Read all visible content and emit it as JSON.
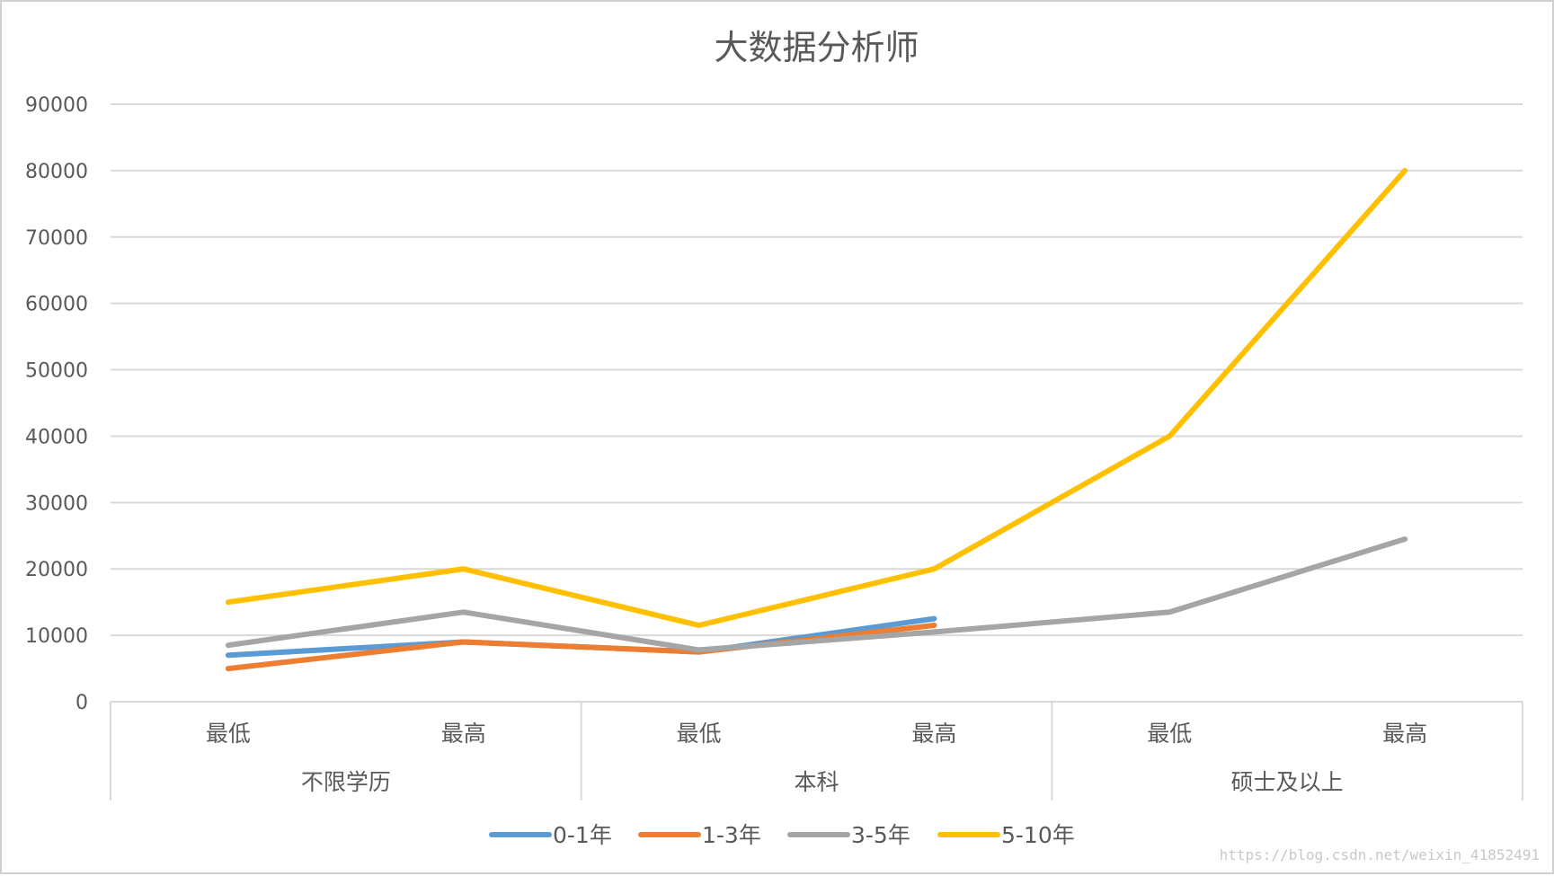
{
  "chart_data": {
    "type": "line",
    "title": "大数据分析师",
    "ylim": [
      0,
      90000
    ],
    "yticks": [
      0,
      10000,
      20000,
      30000,
      40000,
      50000,
      60000,
      70000,
      80000,
      90000
    ],
    "grid": true,
    "legend_position": "bottom",
    "categories": [
      "最低",
      "最高",
      "最低",
      "最高",
      "最低",
      "最高"
    ],
    "groups": [
      {
        "label": "不限学历",
        "categories": [
          "最低",
          "最高"
        ]
      },
      {
        "label": "本科",
        "categories": [
          "最低",
          "最高"
        ]
      },
      {
        "label": "硕士及以上",
        "categories": [
          "最低",
          "最高"
        ]
      }
    ],
    "series": [
      {
        "name": "0-1年",
        "color": "#5B9BD5",
        "values": [
          7000,
          9000,
          7500,
          12500,
          null,
          null
        ]
      },
      {
        "name": "1-3年",
        "color": "#ED7D31",
        "values": [
          5000,
          9000,
          7500,
          11500,
          null,
          null
        ]
      },
      {
        "name": "3-5年",
        "color": "#A5A5A5",
        "values": [
          8500,
          13500,
          7800,
          10500,
          13500,
          24500
        ]
      },
      {
        "name": "5-10年",
        "color": "#FFC000",
        "values": [
          15000,
          20000,
          11500,
          20000,
          40000,
          80000
        ]
      }
    ]
  },
  "watermark": "https://blog.csdn.net/weixin_41852491"
}
